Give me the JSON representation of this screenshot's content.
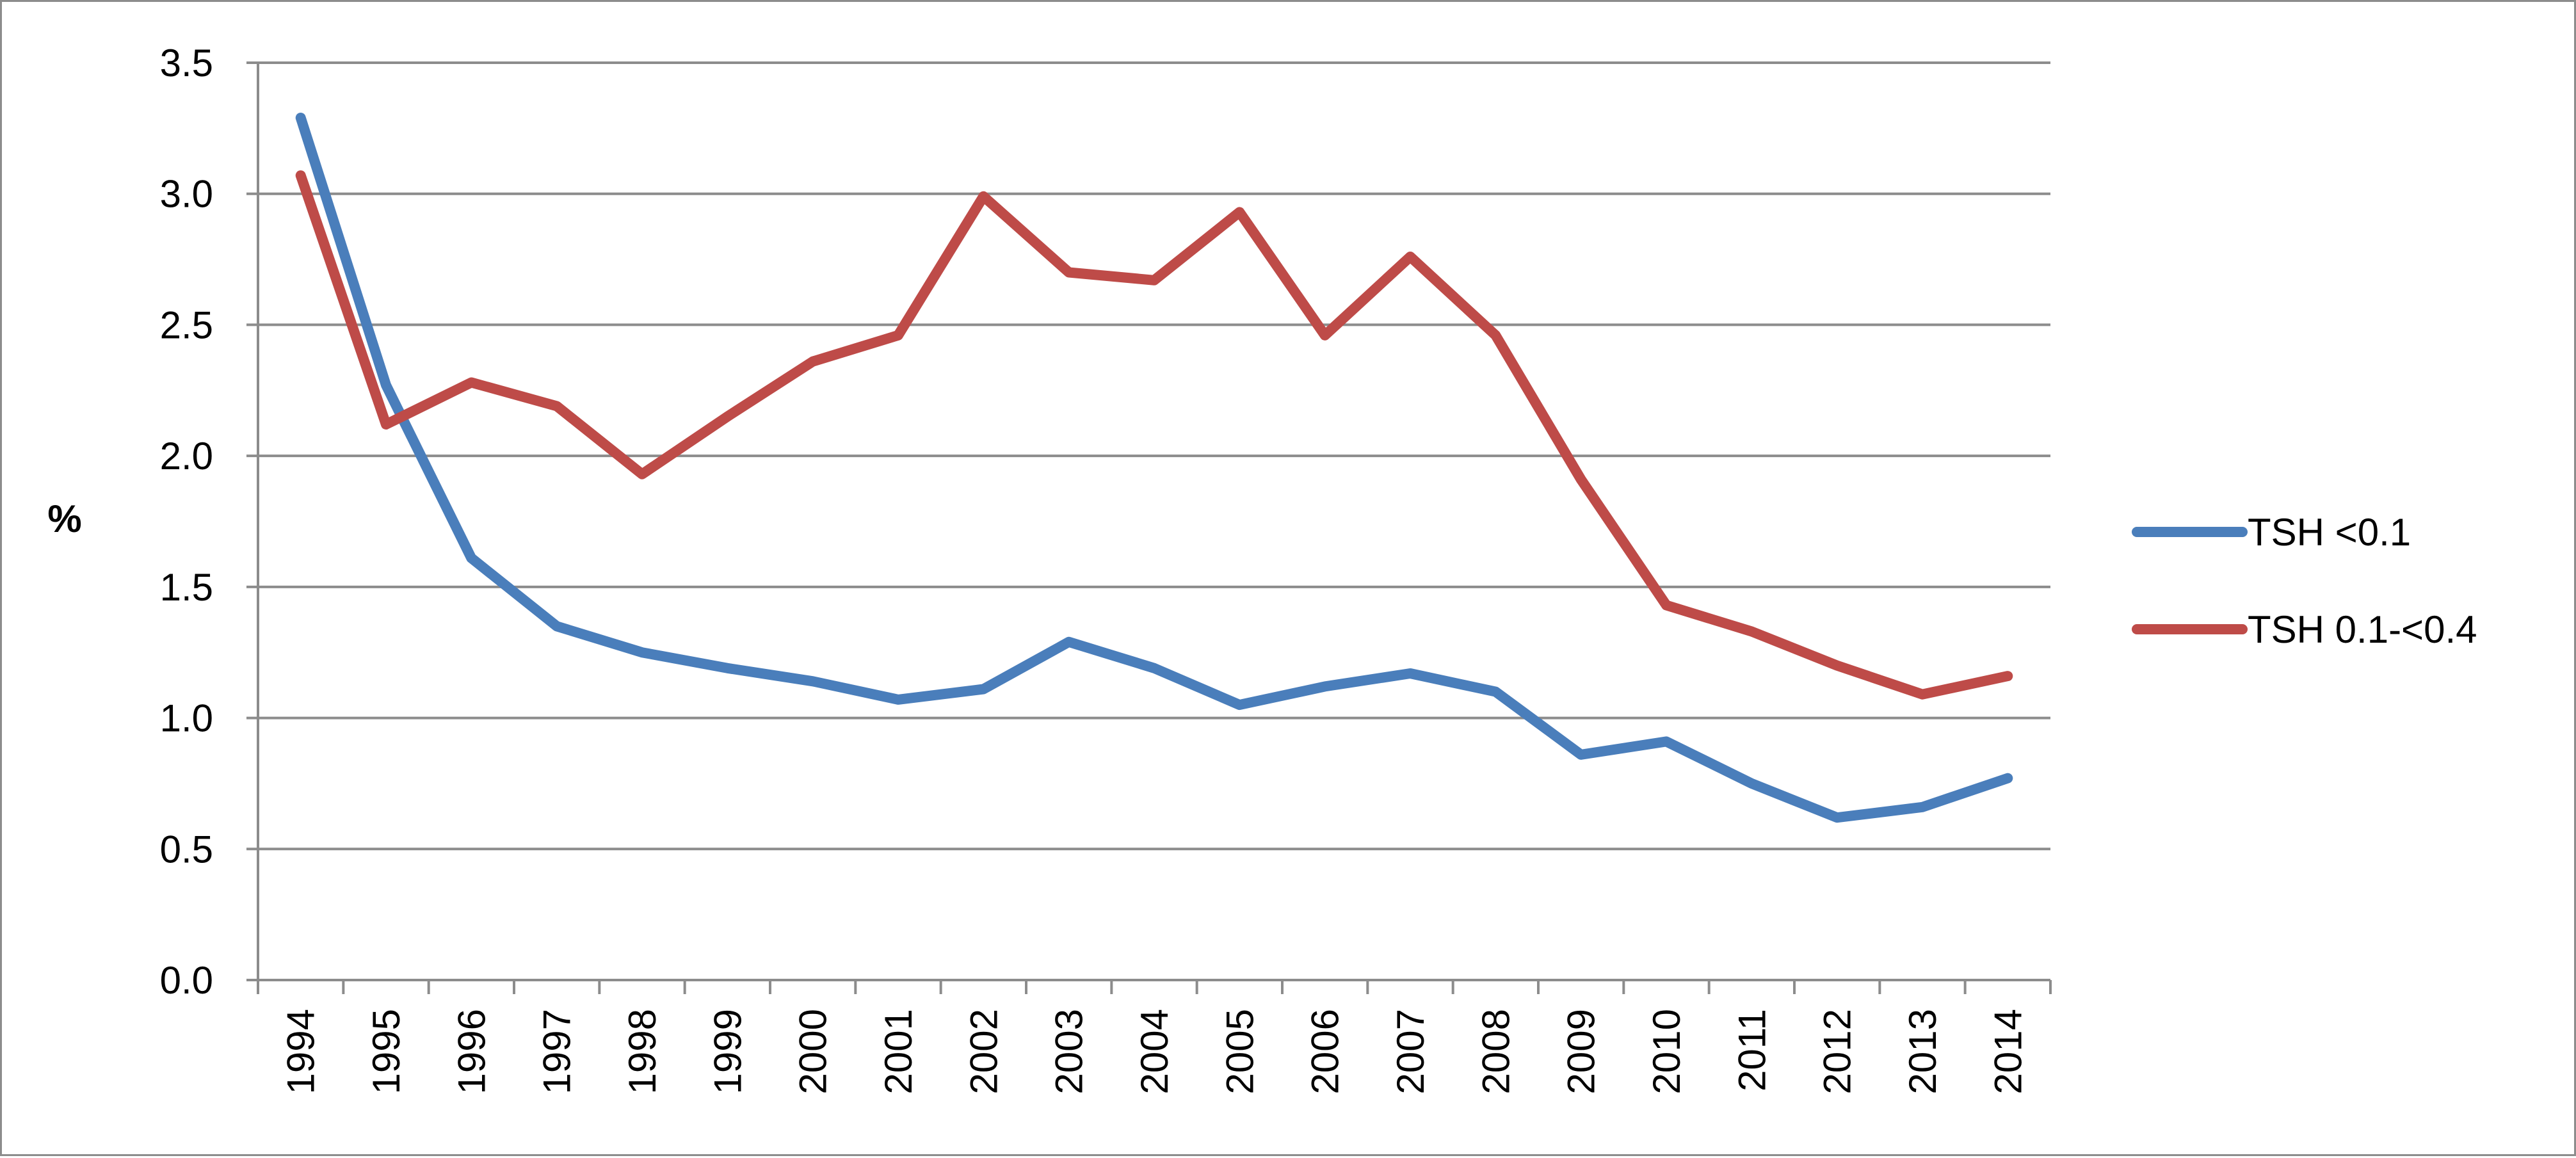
{
  "chart_data": {
    "type": "line",
    "title": "",
    "xlabel": "",
    "ylabel": "%",
    "ylim": [
      0,
      3.5
    ],
    "yticks": [
      "0.0",
      "0.5",
      "1.0",
      "1.5",
      "2.0",
      "2.5",
      "3.0",
      "3.5"
    ],
    "x": [
      "1994",
      "1995",
      "1996",
      "1997",
      "1998",
      "1999",
      "2000",
      "2001",
      "2002",
      "2003",
      "2004",
      "2005",
      "2006",
      "2007",
      "2008",
      "2009",
      "2010",
      "2011",
      "2012",
      "2013",
      "2014"
    ],
    "grid": "horizontal",
    "legend_position": "right",
    "series": [
      {
        "name": "TSH <0.1",
        "color": "#4a7ebb",
        "values": [
          3.29,
          2.27,
          1.61,
          1.35,
          1.25,
          1.19,
          1.14,
          1.07,
          1.11,
          1.29,
          1.19,
          1.05,
          1.12,
          1.17,
          1.1,
          0.86,
          0.91,
          0.75,
          0.62,
          0.66,
          0.77
        ]
      },
      {
        "name": "TSH 0.1-<0.4",
        "color": "#be4b48",
        "values": [
          3.07,
          2.12,
          2.28,
          2.19,
          1.93,
          2.15,
          2.36,
          2.46,
          2.99,
          2.7,
          2.67,
          2.93,
          2.46,
          2.76,
          2.46,
          1.91,
          1.43,
          1.33,
          1.2,
          1.09,
          1.16
        ]
      }
    ]
  }
}
